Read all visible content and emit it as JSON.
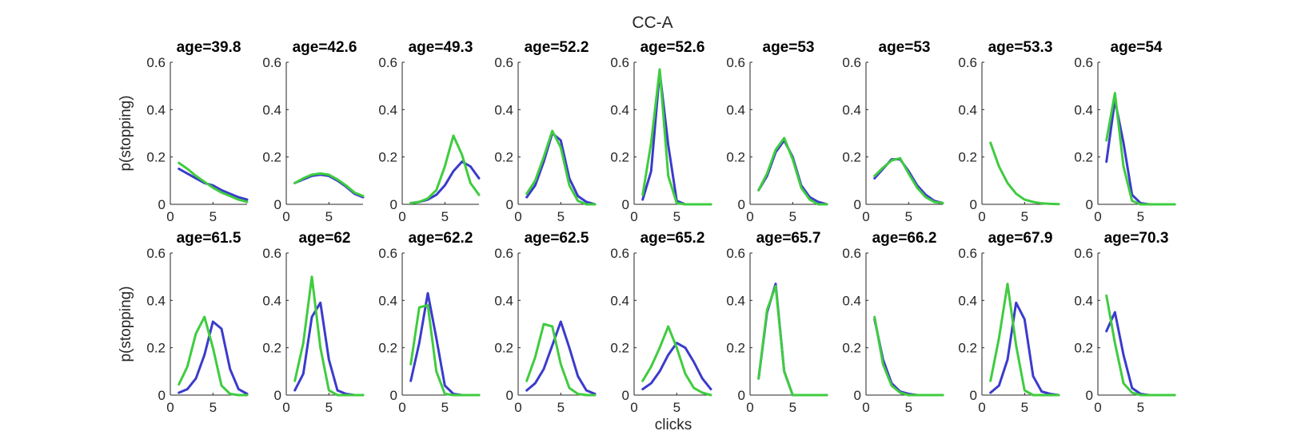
{
  "chart_data": {
    "type": "line",
    "title": "CC-A",
    "xlabel": "clicks",
    "ylabel": "p(stopping)",
    "xlim": [
      0,
      9
    ],
    "ylim": [
      0,
      0.6
    ],
    "xticks": [
      0,
      5
    ],
    "yticks": [
      0,
      0.2,
      0.4,
      0.6
    ],
    "x": [
      1,
      2,
      3,
      4,
      5,
      6,
      7,
      8,
      9
    ],
    "series_colors": {
      "blue": "#3b3bcc",
      "green": "#3fcc3f"
    },
    "panels": [
      {
        "title": "age=39.8",
        "blue": [
          0.15,
          0.13,
          0.11,
          0.09,
          0.08,
          0.06,
          0.045,
          0.03,
          0.02
        ],
        "green": [
          0.175,
          0.15,
          0.12,
          0.095,
          0.07,
          0.05,
          0.035,
          0.02,
          0.01
        ]
      },
      {
        "title": "age=42.6",
        "blue": [
          0.09,
          0.105,
          0.12,
          0.125,
          0.12,
          0.1,
          0.075,
          0.045,
          0.03
        ],
        "green": [
          0.09,
          0.11,
          0.125,
          0.13,
          0.125,
          0.105,
          0.08,
          0.05,
          0.035
        ]
      },
      {
        "title": "age=49.3",
        "blue": [
          0.005,
          0.01,
          0.02,
          0.04,
          0.08,
          0.14,
          0.18,
          0.16,
          0.11
        ],
        "green": [
          0.005,
          0.01,
          0.025,
          0.06,
          0.16,
          0.29,
          0.21,
          0.09,
          0.04
        ]
      },
      {
        "title": "age=52.2",
        "blue": [
          0.03,
          0.08,
          0.18,
          0.3,
          0.27,
          0.11,
          0.035,
          0.01,
          0.0
        ],
        "green": [
          0.045,
          0.1,
          0.2,
          0.31,
          0.24,
          0.08,
          0.015,
          0.0,
          0.0
        ]
      },
      {
        "title": "age=52.6",
        "blue": [
          0.02,
          0.14,
          0.56,
          0.25,
          0.015,
          0.0,
          0.0,
          0.0,
          0.0
        ],
        "green": [
          0.04,
          0.26,
          0.57,
          0.12,
          0.005,
          0.0,
          0.0,
          0.0,
          0.0
        ]
      },
      {
        "title": "age=53",
        "blue": [
          0.06,
          0.12,
          0.22,
          0.27,
          0.2,
          0.08,
          0.03,
          0.01,
          0.0
        ],
        "green": [
          0.06,
          0.13,
          0.23,
          0.28,
          0.19,
          0.07,
          0.02,
          0.0,
          0.0
        ]
      },
      {
        "title": "age=53",
        "blue": [
          0.11,
          0.15,
          0.19,
          0.19,
          0.14,
          0.08,
          0.04,
          0.015,
          0.005
        ],
        "green": [
          0.12,
          0.155,
          0.185,
          0.195,
          0.13,
          0.07,
          0.03,
          0.01,
          0.005
        ]
      },
      {
        "title": "age=53.3",
        "blue": [],
        "green": [
          0.26,
          0.16,
          0.09,
          0.045,
          0.02,
          0.01,
          0.004,
          0.002,
          0.001
        ]
      },
      {
        "title": "age=54",
        "blue": [
          0.18,
          0.44,
          0.26,
          0.04,
          0.005,
          0.0,
          0.0,
          0.0,
          0.0
        ],
        "green": [
          0.27,
          0.47,
          0.16,
          0.015,
          0.0,
          0.0,
          0.0,
          0.0,
          0.0
        ]
      },
      {
        "title": "age=61.5",
        "blue": [
          0.01,
          0.025,
          0.07,
          0.17,
          0.31,
          0.28,
          0.11,
          0.025,
          0.005
        ],
        "green": [
          0.045,
          0.12,
          0.26,
          0.33,
          0.2,
          0.04,
          0.005,
          0.0,
          0.0
        ]
      },
      {
        "title": "age=62",
        "blue": [
          0.02,
          0.09,
          0.33,
          0.39,
          0.15,
          0.02,
          0.005,
          0.0,
          0.0
        ],
        "green": [
          0.06,
          0.22,
          0.5,
          0.2,
          0.02,
          0.0,
          0.0,
          0.0,
          0.0
        ]
      },
      {
        "title": "age=62.2",
        "blue": [
          0.06,
          0.22,
          0.43,
          0.24,
          0.04,
          0.005,
          0.0,
          0.0,
          0.0
        ],
        "green": [
          0.13,
          0.37,
          0.38,
          0.1,
          0.005,
          0.0,
          0.0,
          0.0,
          0.0
        ]
      },
      {
        "title": "age=62.5",
        "blue": [
          0.02,
          0.05,
          0.11,
          0.21,
          0.31,
          0.2,
          0.08,
          0.02,
          0.005
        ],
        "green": [
          0.06,
          0.16,
          0.3,
          0.29,
          0.13,
          0.03,
          0.005,
          0.0,
          0.0
        ]
      },
      {
        "title": "age=65.2",
        "blue": [
          0.025,
          0.05,
          0.1,
          0.17,
          0.22,
          0.2,
          0.14,
          0.07,
          0.025
        ],
        "green": [
          0.06,
          0.12,
          0.2,
          0.29,
          0.2,
          0.09,
          0.03,
          0.01,
          0.0
        ]
      },
      {
        "title": "age=65.7",
        "blue": [
          0.07,
          0.35,
          0.47,
          0.1,
          0.0,
          0.0,
          0.0,
          0.0,
          0.0
        ],
        "green": [
          0.07,
          0.36,
          0.46,
          0.1,
          0.0,
          0.0,
          0.0,
          0.0,
          0.0
        ]
      },
      {
        "title": "age=66.2",
        "blue": [
          0.32,
          0.15,
          0.05,
          0.015,
          0.005,
          0.0,
          0.0,
          0.0,
          0.0
        ],
        "green": [
          0.33,
          0.13,
          0.04,
          0.01,
          0.0,
          0.0,
          0.0,
          0.0,
          0.0
        ]
      },
      {
        "title": "age=67.9",
        "blue": [
          0.01,
          0.04,
          0.15,
          0.39,
          0.32,
          0.08,
          0.015,
          0.005,
          0.0
        ],
        "green": [
          0.06,
          0.24,
          0.47,
          0.21,
          0.02,
          0.0,
          0.0,
          0.0,
          0.0
        ]
      },
      {
        "title": "age=70.3",
        "blue": [
          0.27,
          0.35,
          0.17,
          0.03,
          0.005,
          0.0,
          0.0,
          0.0,
          0.0
        ],
        "green": [
          0.42,
          0.22,
          0.05,
          0.01,
          0.0,
          0.0,
          0.0,
          0.0,
          0.0
        ]
      }
    ]
  }
}
